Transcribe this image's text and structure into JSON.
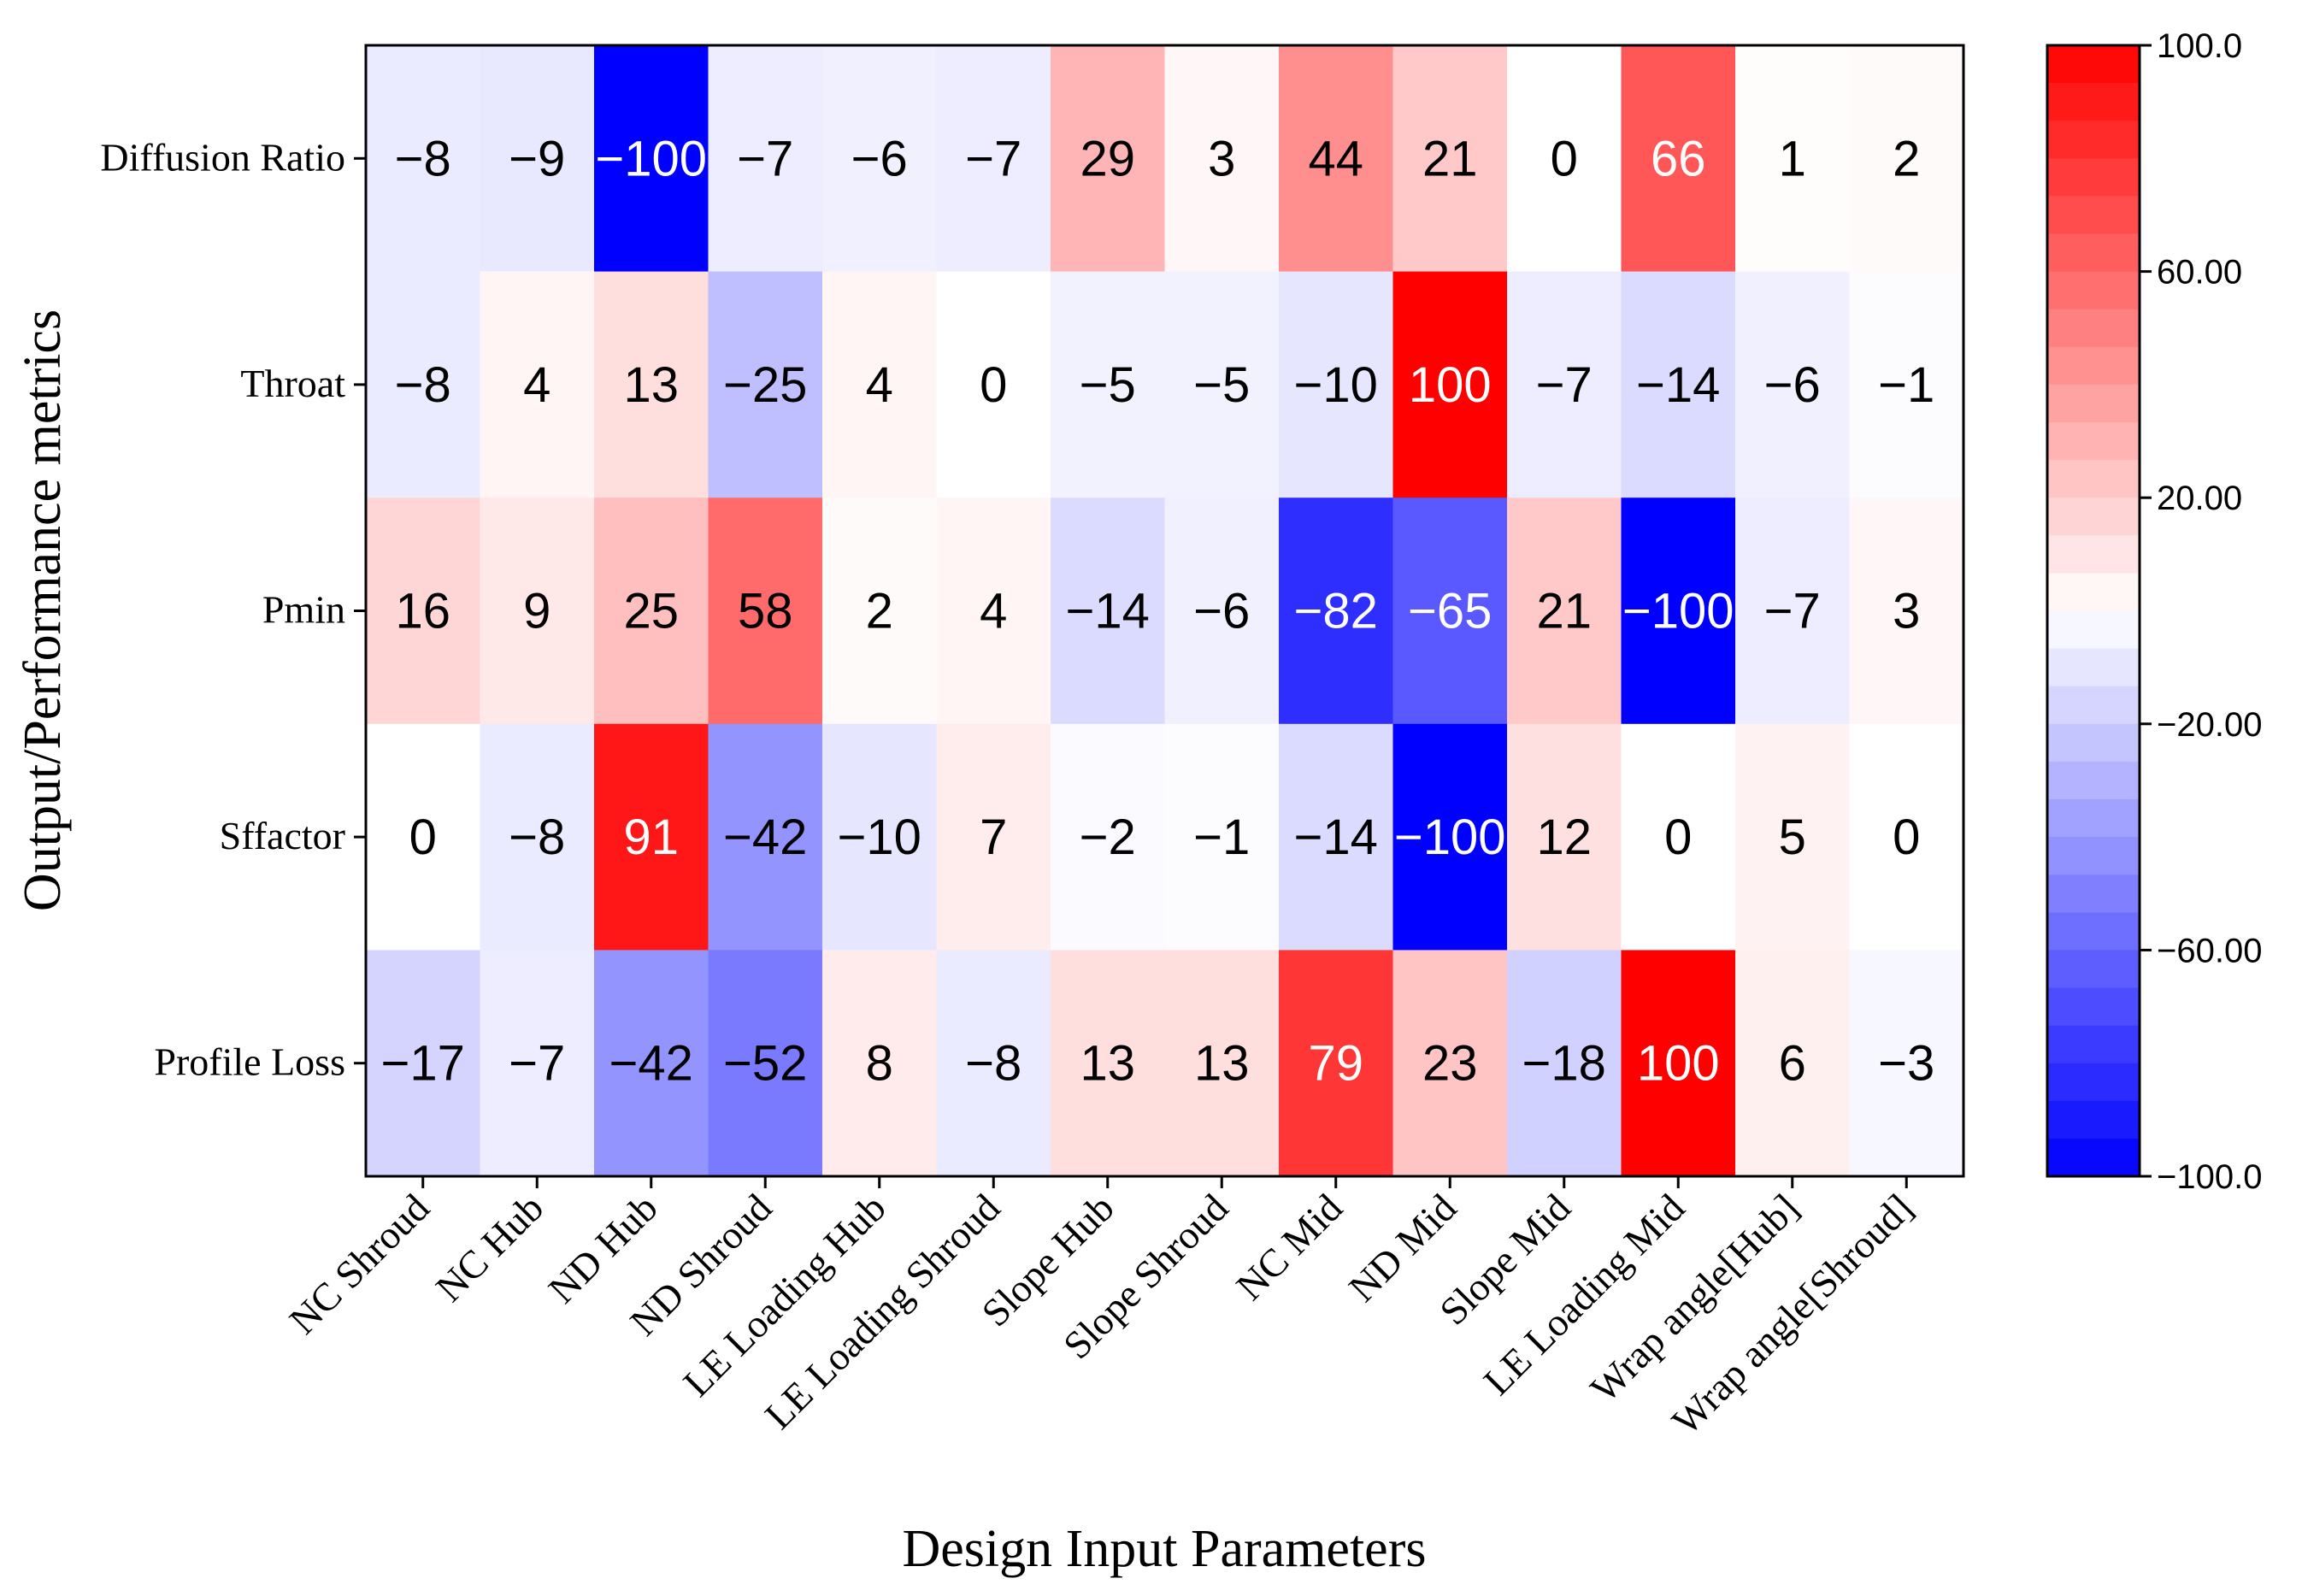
{
  "chart_data": {
    "type": "heatmap",
    "title": "",
    "xlabel": "Design Input Parameters",
    "ylabel": "Output/Performance metrics",
    "rows": [
      "Diffusion Ratio",
      "Throat",
      "Pmin",
      "Sffactor",
      "Profile Loss"
    ],
    "columns": [
      "NC Shroud",
      "NC Hub",
      "ND Hub",
      "ND Shroud",
      "LE Loading Hub",
      "LE Loading Shroud",
      "Slope Hub",
      "Slope Shroud",
      "NC Mid",
      "ND Mid",
      "Slope Mid",
      "LE Loading Mid",
      "Wrap angle[Hub]",
      "Wrap angle[Shroud]"
    ],
    "values": [
      [
        -8,
        -9,
        -100,
        -7,
        -6,
        -7,
        29,
        3,
        44,
        21,
        0,
        66,
        1,
        2
      ],
      [
        -8,
        4,
        13,
        -25,
        4,
        0,
        -5,
        -5,
        -10,
        100,
        -7,
        -14,
        -6,
        -1
      ],
      [
        16,
        9,
        25,
        58,
        2,
        4,
        -14,
        -6,
        -82,
        -65,
        21,
        -100,
        -7,
        3
      ],
      [
        0,
        -8,
        91,
        -42,
        -10,
        7,
        -2,
        -1,
        -14,
        -100,
        12,
        0,
        5,
        0
      ],
      [
        -17,
        -7,
        -42,
        -52,
        8,
        -8,
        13,
        13,
        79,
        23,
        -18,
        100,
        6,
        -3
      ]
    ],
    "value_labels": [
      [
        "−8",
        "−9",
        "−100",
        "−7",
        "−6",
        "−7",
        "29",
        "3",
        "44",
        "21",
        "0",
        "66",
        "1",
        "2"
      ],
      [
        "−8",
        "4",
        "13",
        "−25",
        "4",
        "0",
        "−5",
        "−5",
        "−10",
        "100",
        "−7",
        "−14",
        "−6",
        "−1"
      ],
      [
        "16",
        "9",
        "25",
        "58",
        "2",
        "4",
        "−14",
        "−6",
        "−82",
        "−65",
        "21",
        "−100",
        "−7",
        "3"
      ],
      [
        "0",
        "−8",
        "91",
        "−42",
        "−10",
        "7",
        "−2",
        "−1",
        "−14",
        "−100",
        "12",
        "0",
        "5",
        "0"
      ],
      [
        "−17",
        "−7",
        "−42",
        "−52",
        "8",
        "−8",
        "13",
        "13",
        "79",
        "23",
        "−18",
        "100",
        "6",
        "−3"
      ]
    ],
    "colorbar": {
      "range": [
        -100,
        100
      ],
      "levels": 30,
      "ticks": [
        100,
        60,
        20,
        -20,
        -60,
        -100
      ],
      "tick_labels": [
        "100.0",
        "60.00",
        "20.00",
        "−20.00",
        "−60.00",
        "−100.0"
      ],
      "low_color": "#0000ff",
      "mid_color": "#ffffff",
      "high_color": "#ff0000"
    }
  }
}
